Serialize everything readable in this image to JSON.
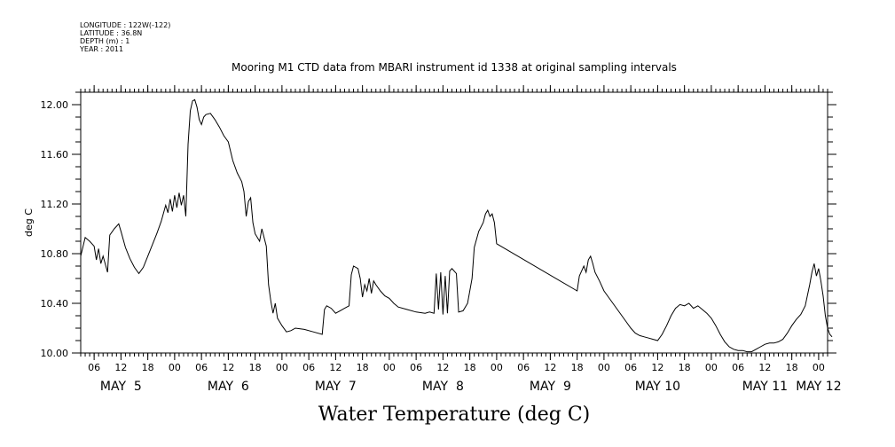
{
  "header": {
    "lines": [
      "LONGITUDE : 122W(-122)",
      "LATITUDE : 36.8N",
      "DEPTH (m) : 1",
      "YEAR : 2011"
    ]
  },
  "chart_data": {
    "type": "line",
    "title": "Mooring M1 CTD data from MBARI instrument id 1338 at original sampling intervals",
    "xlabel": "Water Temperature (deg C)",
    "ylabel": "deg C",
    "xlim": [
      "2011-05-05 03:00",
      "2011-05-12 02:00"
    ],
    "ylim": [
      10.0,
      12.1
    ],
    "yticks": [
      10.0,
      10.4,
      10.8,
      11.2,
      11.6,
      12.0
    ],
    "ytick_labels": [
      "10.00",
      "10.40",
      "10.80",
      "11.20",
      "11.60",
      "12.00"
    ],
    "hour_ticks": [
      {
        "time": "2011-05-05 06:00",
        "label": "06"
      },
      {
        "time": "2011-05-05 12:00",
        "label": "12"
      },
      {
        "time": "2011-05-05 18:00",
        "label": "18"
      },
      {
        "time": "2011-05-06 00:00",
        "label": "00"
      },
      {
        "time": "2011-05-06 06:00",
        "label": "06"
      },
      {
        "time": "2011-05-06 12:00",
        "label": "12"
      },
      {
        "time": "2011-05-06 18:00",
        "label": "18"
      },
      {
        "time": "2011-05-07 00:00",
        "label": "00"
      },
      {
        "time": "2011-05-07 06:00",
        "label": "06"
      },
      {
        "time": "2011-05-07 12:00",
        "label": "12"
      },
      {
        "time": "2011-05-07 18:00",
        "label": "18"
      },
      {
        "time": "2011-05-08 00:00",
        "label": "00"
      },
      {
        "time": "2011-05-08 06:00",
        "label": "06"
      },
      {
        "time": "2011-05-08 12:00",
        "label": "12"
      },
      {
        "time": "2011-05-08 18:00",
        "label": "18"
      },
      {
        "time": "2011-05-09 00:00",
        "label": "00"
      },
      {
        "time": "2011-05-09 06:00",
        "label": "06"
      },
      {
        "time": "2011-05-09 12:00",
        "label": "12"
      },
      {
        "time": "2011-05-09 18:00",
        "label": "18"
      },
      {
        "time": "2011-05-10 00:00",
        "label": "00"
      },
      {
        "time": "2011-05-10 06:00",
        "label": "06"
      },
      {
        "time": "2011-05-10 12:00",
        "label": "12"
      },
      {
        "time": "2011-05-10 18:00",
        "label": "18"
      },
      {
        "time": "2011-05-11 00:00",
        "label": "00"
      },
      {
        "time": "2011-05-11 06:00",
        "label": "06"
      },
      {
        "time": "2011-05-11 12:00",
        "label": "12"
      },
      {
        "time": "2011-05-11 18:00",
        "label": "18"
      },
      {
        "time": "2011-05-12 00:00",
        "label": "00"
      }
    ],
    "day_labels": [
      {
        "time": "2011-05-05 12:00",
        "label": "MAY  5"
      },
      {
        "time": "2011-05-06 12:00",
        "label": "MAY  6"
      },
      {
        "time": "2011-05-07 12:00",
        "label": "MAY  7"
      },
      {
        "time": "2011-05-08 12:00",
        "label": "MAY  8"
      },
      {
        "time": "2011-05-09 12:00",
        "label": "MAY  9"
      },
      {
        "time": "2011-05-10 12:00",
        "label": "MAY 10"
      },
      {
        "time": "2011-05-11 12:00",
        "label": "MAY 11"
      },
      {
        "time": "2011-05-12 00:00",
        "label": "MAY 12"
      }
    ],
    "series": [
      {
        "color": "#000000",
        "points": [
          [
            "2011-05-05 03:00",
            10.78
          ],
          [
            "2011-05-05 04:00",
            10.93
          ],
          [
            "2011-05-05 05:00",
            10.9
          ],
          [
            "2011-05-05 06:00",
            10.86
          ],
          [
            "2011-05-05 06:30",
            10.75
          ],
          [
            "2011-05-05 07:00",
            10.84
          ],
          [
            "2011-05-05 07:30",
            10.72
          ],
          [
            "2011-05-05 08:00",
            10.78
          ],
          [
            "2011-05-05 09:00",
            10.65
          ],
          [
            "2011-05-05 09:30",
            10.95
          ],
          [
            "2011-05-05 10:30",
            11.0
          ],
          [
            "2011-05-05 11:30",
            11.04
          ],
          [
            "2011-05-05 12:00",
            10.98
          ],
          [
            "2011-05-05 13:00",
            10.85
          ],
          [
            "2011-05-05 14:00",
            10.76
          ],
          [
            "2011-05-05 15:00",
            10.69
          ],
          [
            "2011-05-05 16:00",
            10.64
          ],
          [
            "2011-05-05 17:00",
            10.69
          ],
          [
            "2011-05-05 18:00",
            10.78
          ],
          [
            "2011-05-05 19:00",
            10.87
          ],
          [
            "2011-05-05 20:00",
            10.96
          ],
          [
            "2011-05-05 21:00",
            11.06
          ],
          [
            "2011-05-05 22:00",
            11.19
          ],
          [
            "2011-05-05 22:30",
            11.13
          ],
          [
            "2011-05-05 23:00",
            11.24
          ],
          [
            "2011-05-05 23:30",
            11.14
          ],
          [
            "2011-05-06 00:00",
            11.27
          ],
          [
            "2011-05-06 00:30",
            11.17
          ],
          [
            "2011-05-06 01:00",
            11.29
          ],
          [
            "2011-05-06 01:30",
            11.19
          ],
          [
            "2011-05-06 02:00",
            11.27
          ],
          [
            "2011-05-06 02:30",
            11.1
          ],
          [
            "2011-05-06 03:00",
            11.68
          ],
          [
            "2011-05-06 03:30",
            11.95
          ],
          [
            "2011-05-06 04:00",
            12.03
          ],
          [
            "2011-05-06 04:30",
            12.04
          ],
          [
            "2011-05-06 05:00",
            11.98
          ],
          [
            "2011-05-06 05:30",
            11.88
          ],
          [
            "2011-05-06 06:00",
            11.84
          ],
          [
            "2011-05-06 06:30",
            11.9
          ],
          [
            "2011-05-06 07:00",
            11.92
          ],
          [
            "2011-05-06 08:00",
            11.93
          ],
          [
            "2011-05-06 09:00",
            11.88
          ],
          [
            "2011-05-06 10:00",
            11.82
          ],
          [
            "2011-05-06 11:00",
            11.75
          ],
          [
            "2011-05-06 12:00",
            11.7
          ],
          [
            "2011-05-06 13:00",
            11.55
          ],
          [
            "2011-05-06 14:00",
            11.45
          ],
          [
            "2011-05-06 15:00",
            11.38
          ],
          [
            "2011-05-06 15:30",
            11.3
          ],
          [
            "2011-05-06 16:00",
            11.1
          ],
          [
            "2011-05-06 16:30",
            11.22
          ],
          [
            "2011-05-06 17:00",
            11.25
          ],
          [
            "2011-05-06 17:30",
            11.05
          ],
          [
            "2011-05-06 18:00",
            10.96
          ],
          [
            "2011-05-06 19:00",
            10.9
          ],
          [
            "2011-05-06 19:30",
            11.0
          ],
          [
            "2011-05-06 20:00",
            10.93
          ],
          [
            "2011-05-06 20:30",
            10.86
          ],
          [
            "2011-05-06 21:00",
            10.55
          ],
          [
            "2011-05-06 21:30",
            10.42
          ],
          [
            "2011-05-06 22:00",
            10.32
          ],
          [
            "2011-05-06 22:30",
            10.4
          ],
          [
            "2011-05-06 23:00",
            10.28
          ],
          [
            "2011-05-07 00:00",
            10.22
          ],
          [
            "2011-05-07 01:00",
            10.17
          ],
          [
            "2011-05-07 02:00",
            10.18
          ],
          [
            "2011-05-07 03:00",
            10.2
          ],
          [
            "2011-05-07 05:00",
            10.19
          ],
          [
            "2011-05-07 07:00",
            10.17
          ],
          [
            "2011-05-07 09:00",
            10.15
          ],
          [
            "2011-05-07 09:30",
            10.35
          ],
          [
            "2011-05-07 10:00",
            10.38
          ],
          [
            "2011-05-07 11:00",
            10.36
          ],
          [
            "2011-05-07 12:00",
            10.32
          ],
          [
            "2011-05-07 13:00",
            10.34
          ],
          [
            "2011-05-07 14:00",
            10.36
          ],
          [
            "2011-05-07 15:00",
            10.38
          ],
          [
            "2011-05-07 15:30",
            10.63
          ],
          [
            "2011-05-07 16:00",
            10.7
          ],
          [
            "2011-05-07 17:00",
            10.68
          ],
          [
            "2011-05-07 17:30",
            10.6
          ],
          [
            "2011-05-07 18:00",
            10.45
          ],
          [
            "2011-05-07 18:30",
            10.55
          ],
          [
            "2011-05-07 19:00",
            10.5
          ],
          [
            "2011-05-07 19:30",
            10.6
          ],
          [
            "2011-05-07 20:00",
            10.48
          ],
          [
            "2011-05-07 20:30",
            10.58
          ],
          [
            "2011-05-07 21:00",
            10.55
          ],
          [
            "2011-05-07 22:00",
            10.5
          ],
          [
            "2011-05-07 23:00",
            10.46
          ],
          [
            "2011-05-08 00:00",
            10.44
          ],
          [
            "2011-05-08 01:00",
            10.4
          ],
          [
            "2011-05-08 02:00",
            10.37
          ],
          [
            "2011-05-08 04:00",
            10.35
          ],
          [
            "2011-05-08 06:00",
            10.33
          ],
          [
            "2011-05-08 08:00",
            10.32
          ],
          [
            "2011-05-08 09:00",
            10.33
          ],
          [
            "2011-05-08 10:00",
            10.32
          ],
          [
            "2011-05-08 10:30",
            10.64
          ],
          [
            "2011-05-08 11:00",
            10.35
          ],
          [
            "2011-05-08 11:30",
            10.65
          ],
          [
            "2011-05-08 12:00",
            10.31
          ],
          [
            "2011-05-08 12:30",
            10.62
          ],
          [
            "2011-05-08 13:00",
            10.32
          ],
          [
            "2011-05-08 13:30",
            10.66
          ],
          [
            "2011-05-08 14:00",
            10.68
          ],
          [
            "2011-05-08 15:00",
            10.64
          ],
          [
            "2011-05-08 15:30",
            10.33
          ],
          [
            "2011-05-08 16:30",
            10.34
          ],
          [
            "2011-05-08 17:30",
            10.4
          ],
          [
            "2011-05-08 18:30",
            10.6
          ],
          [
            "2011-05-08 19:00",
            10.85
          ],
          [
            "2011-05-08 20:00",
            10.98
          ],
          [
            "2011-05-08 21:00",
            11.05
          ],
          [
            "2011-05-08 21:30",
            11.12
          ],
          [
            "2011-05-08 22:00",
            11.15
          ],
          [
            "2011-05-08 22:30",
            11.1
          ],
          [
            "2011-05-08 23:00",
            11.12
          ],
          [
            "2011-05-08 23:30",
            11.05
          ],
          [
            "2011-05-09 00:00",
            10.88
          ],
          [
            "2011-05-09 18:00",
            10.5
          ],
          [
            "2011-05-09 18:30",
            10.62
          ],
          [
            "2011-05-09 19:00",
            10.66
          ],
          [
            "2011-05-09 19:30",
            10.7
          ],
          [
            "2011-05-09 20:00",
            10.65
          ],
          [
            "2011-05-09 20:30",
            10.75
          ],
          [
            "2011-05-09 21:00",
            10.78
          ],
          [
            "2011-05-09 21:30",
            10.72
          ],
          [
            "2011-05-09 22:00",
            10.65
          ],
          [
            "2011-05-09 23:00",
            10.58
          ],
          [
            "2011-05-10 00:00",
            10.5
          ],
          [
            "2011-05-10 01:00",
            10.45
          ],
          [
            "2011-05-10 02:00",
            10.4
          ],
          [
            "2011-05-10 03:00",
            10.35
          ],
          [
            "2011-05-10 04:00",
            10.3
          ],
          [
            "2011-05-10 05:00",
            10.25
          ],
          [
            "2011-05-10 06:00",
            10.2
          ],
          [
            "2011-05-10 07:00",
            10.16
          ],
          [
            "2011-05-10 08:00",
            10.14
          ],
          [
            "2011-05-10 09:00",
            10.13
          ],
          [
            "2011-05-10 10:00",
            10.12
          ],
          [
            "2011-05-10 11:00",
            10.11
          ],
          [
            "2011-05-10 12:00",
            10.1
          ],
          [
            "2011-05-10 13:00",
            10.15
          ],
          [
            "2011-05-10 14:00",
            10.22
          ],
          [
            "2011-05-10 15:00",
            10.3
          ],
          [
            "2011-05-10 16:00",
            10.36
          ],
          [
            "2011-05-10 17:00",
            10.39
          ],
          [
            "2011-05-10 18:00",
            10.38
          ],
          [
            "2011-05-10 19:00",
            10.4
          ],
          [
            "2011-05-10 20:00",
            10.36
          ],
          [
            "2011-05-10 21:00",
            10.38
          ],
          [
            "2011-05-10 22:00",
            10.35
          ],
          [
            "2011-05-10 23:00",
            10.32
          ],
          [
            "2011-05-11 00:00",
            10.28
          ],
          [
            "2011-05-11 01:00",
            10.22
          ],
          [
            "2011-05-11 02:00",
            10.15
          ],
          [
            "2011-05-11 03:00",
            10.09
          ],
          [
            "2011-05-11 04:00",
            10.05
          ],
          [
            "2011-05-11 05:00",
            10.03
          ],
          [
            "2011-05-11 06:00",
            10.02
          ],
          [
            "2011-05-11 07:00",
            10.02
          ],
          [
            "2011-05-11 08:00",
            10.01
          ],
          [
            "2011-05-11 09:00",
            10.01
          ],
          [
            "2011-05-11 10:00",
            10.03
          ],
          [
            "2011-05-11 11:00",
            10.05
          ],
          [
            "2011-05-11 12:00",
            10.07
          ],
          [
            "2011-05-11 13:00",
            10.08
          ],
          [
            "2011-05-11 14:00",
            10.08
          ],
          [
            "2011-05-11 15:00",
            10.09
          ],
          [
            "2011-05-11 16:00",
            10.11
          ],
          [
            "2011-05-11 17:00",
            10.16
          ],
          [
            "2011-05-11 18:00",
            10.22
          ],
          [
            "2011-05-11 19:00",
            10.27
          ],
          [
            "2011-05-11 20:00",
            10.31
          ],
          [
            "2011-05-11 21:00",
            10.38
          ],
          [
            "2011-05-11 22:00",
            10.55
          ],
          [
            "2011-05-11 22:30",
            10.65
          ],
          [
            "2011-05-11 23:00",
            10.72
          ],
          [
            "2011-05-11 23:30",
            10.62
          ],
          [
            "2011-05-12 00:00",
            10.68
          ],
          [
            "2011-05-12 00:30",
            10.58
          ],
          [
            "2011-05-12 01:00",
            10.46
          ],
          [
            "2011-05-12 01:30",
            10.3
          ],
          [
            "2011-05-12 02:00",
            10.2
          ],
          [
            "2011-05-12 02:30",
            10.15
          ],
          [
            "2011-05-12 03:00",
            10.13
          ]
        ]
      }
    ]
  }
}
